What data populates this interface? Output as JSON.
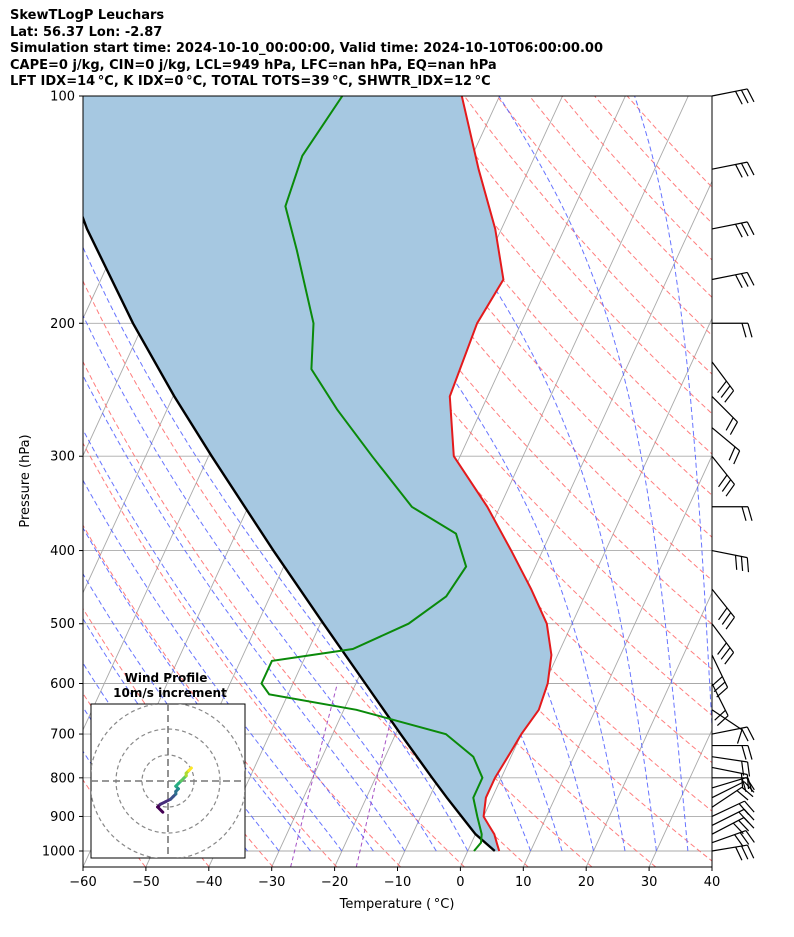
{
  "header": {
    "title": "SkewTLogP Leuchars",
    "location": "Lat: 56.37   Lon: -2.87",
    "times": "Simulation start time: 2024-10-10_00:00:00, Valid time: 2024-10-10T06:00:00.00",
    "indices1": "CAPE=0 j/kg, CIN=0 j/kg, LCL=949 hPa, LFC=nan hPa, EQ=nan hPa",
    "indices2": "LFT IDX=14 °C, K IDX=0 °C, TOTAL TOTS=39 °C, SHWTR_IDX=12 °C"
  },
  "chart_data": {
    "type": "line",
    "subtype": "skew-t log-p diagram",
    "xlabel": "Temperature ( °C)",
    "ylabel": "Pressure (hPa)",
    "xlim": [
      -60,
      40
    ],
    "ylim": [
      1050,
      100
    ],
    "y_scale": "log",
    "x_ticks": [
      "−60",
      "−50",
      "−40",
      "−30",
      "−20",
      "−10",
      "0",
      "10",
      "20",
      "30",
      "40"
    ],
    "y_ticks": [
      "100",
      "200",
      "300",
      "400",
      "500",
      "600",
      "700",
      "800",
      "900",
      "1000"
    ],
    "grid": true,
    "colors": {
      "temperature": "#e41a1c",
      "dewpoint": "#0a8a0a",
      "parcel": "#000000",
      "cape_fill": "#a6c8e1",
      "dry_adiabats": "#ff6666",
      "moist_adiabats": "#4c5cff",
      "mixing_ratio": "#9b3fbf",
      "isotherms": "#aaaaaa"
    },
    "series": [
      {
        "name": "temperature",
        "points": [
          [
            1000,
            5
          ],
          [
            975,
            4
          ],
          [
            950,
            3
          ],
          [
            925,
            1.5
          ],
          [
            900,
            0
          ],
          [
            850,
            -1
          ],
          [
            800,
            -1
          ],
          [
            750,
            -0.5
          ],
          [
            700,
            0
          ],
          [
            650,
            1
          ],
          [
            600,
            0.5
          ],
          [
            550,
            -1
          ],
          [
            500,
            -4
          ],
          [
            450,
            -9
          ],
          [
            400,
            -15
          ],
          [
            350,
            -22
          ],
          [
            300,
            -31
          ],
          [
            250,
            -36
          ],
          [
            200,
            -37
          ],
          [
            175,
            -36
          ],
          [
            150,
            -41
          ],
          [
            125,
            -48
          ],
          [
            100,
            -56
          ]
        ]
      },
      {
        "name": "dewpoint",
        "points": [
          [
            1000,
            1
          ],
          [
            975,
            1.5
          ],
          [
            950,
            1
          ],
          [
            925,
            0
          ],
          [
            900,
            -1
          ],
          [
            850,
            -3
          ],
          [
            800,
            -3
          ],
          [
            750,
            -6
          ],
          [
            700,
            -12
          ],
          [
            650,
            -28
          ],
          [
            620,
            -43
          ],
          [
            600,
            -45
          ],
          [
            560,
            -45
          ],
          [
            540,
            -33
          ],
          [
            500,
            -26
          ],
          [
            460,
            -22
          ],
          [
            420,
            -21
          ],
          [
            380,
            -25
          ],
          [
            350,
            -34
          ],
          [
            300,
            -44
          ],
          [
            260,
            -53
          ],
          [
            230,
            -60
          ],
          [
            200,
            -63
          ],
          [
            160,
            -71
          ],
          [
            140,
            -76
          ],
          [
            120,
            -77
          ],
          [
            100,
            -75
          ]
        ]
      },
      {
        "name": "parcel",
        "points": [
          [
            1000,
            4.3
          ],
          [
            950,
            0
          ],
          [
            900,
            -3.5
          ],
          [
            850,
            -7.2
          ],
          [
            800,
            -11
          ],
          [
            700,
            -19.2
          ],
          [
            600,
            -28.5
          ],
          [
            500,
            -39.5
          ],
          [
            400,
            -52.8
          ],
          [
            300,
            -69.5
          ],
          [
            250,
            -79.8
          ],
          [
            200,
            -91.7
          ],
          [
            150,
            -105.9
          ],
          [
            100,
            -123.4
          ]
        ]
      }
    ],
    "wind_barbs": [
      {
        "p": 1000,
        "u": -30,
        "v": -5
      },
      {
        "p": 975,
        "u": -28,
        "v": -10
      },
      {
        "p": 950,
        "u": -25,
        "v": -13
      },
      {
        "p": 925,
        "u": -20,
        "v": -10
      },
      {
        "p": 900,
        "u": -17,
        "v": -8
      },
      {
        "p": 875,
        "u": -15,
        "v": -10
      },
      {
        "p": 850,
        "u": -12,
        "v": -6
      },
      {
        "p": 825,
        "u": -10,
        "v": -3
      },
      {
        "p": 800,
        "u": -15,
        "v": 0
      },
      {
        "p": 775,
        "u": -15,
        "v": 3
      },
      {
        "p": 750,
        "u": -20,
        "v": 3
      },
      {
        "p": 725,
        "u": -20,
        "v": 0
      },
      {
        "p": 700,
        "u": -15,
        "v": -3
      },
      {
        "p": 650,
        "u": -12,
        "v": 8
      },
      {
        "p": 600,
        "u": -10,
        "v": 20
      },
      {
        "p": 550,
        "u": -12,
        "v": 25
      },
      {
        "p": 500,
        "u": -15,
        "v": 20
      },
      {
        "p": 450,
        "u": -20,
        "v": 25
      },
      {
        "p": 400,
        "u": -25,
        "v": 5
      },
      {
        "p": 350,
        "u": -15,
        "v": 0
      },
      {
        "p": 300,
        "u": -20,
        "v": 25
      },
      {
        "p": 275,
        "u": -18,
        "v": 15
      },
      {
        "p": 250,
        "u": -15,
        "v": 15
      },
      {
        "p": 225,
        "u": -15,
        "v": 20
      },
      {
        "p": 200,
        "u": -20,
        "v": 0
      },
      {
        "p": 175,
        "u": -25,
        "v": -5
      },
      {
        "p": 150,
        "u": -25,
        "v": -5
      },
      {
        "p": 125,
        "u": -25,
        "v": -5
      },
      {
        "p": 100,
        "u": -25,
        "v": -5
      }
    ],
    "hodograph": {
      "title": "Wind Profile",
      "subtitle": "10m/s increment",
      "rings_ms": [
        10,
        20,
        30
      ],
      "points": [
        [
          -2,
          -12
        ],
        [
          -4,
          -10
        ],
        [
          -3,
          -9
        ],
        [
          -1,
          -8
        ],
        [
          1,
          -7
        ],
        [
          2,
          -6
        ],
        [
          3,
          -5
        ],
        [
          3,
          -4
        ],
        [
          4,
          -3
        ],
        [
          3,
          -2
        ],
        [
          4,
          -1
        ],
        [
          5,
          0
        ],
        [
          6,
          1
        ],
        [
          7,
          2
        ],
        [
          7,
          3
        ],
        [
          8,
          4
        ],
        [
          9,
          5
        ]
      ]
    }
  }
}
